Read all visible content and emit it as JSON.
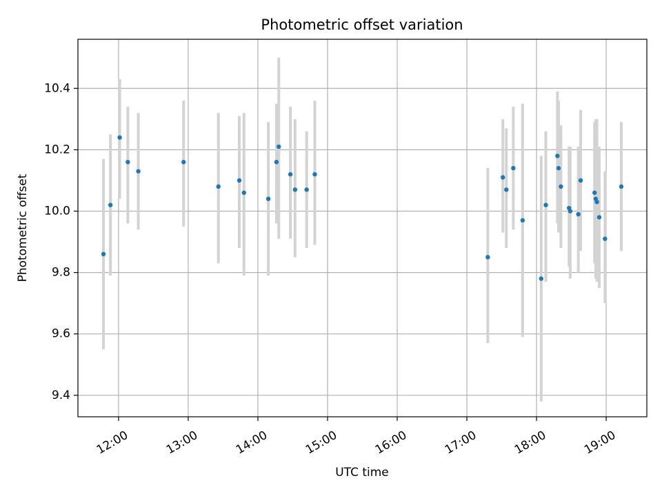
{
  "chart_data": {
    "type": "scatter",
    "title": "Photometric offset variation",
    "xlabel": "UTC time",
    "ylabel": "Photometric offset",
    "x_unit": "UTC time (HH:MM)",
    "xlim": [
      "11:25",
      "19:35"
    ],
    "ylim": [
      9.33,
      10.56
    ],
    "x_ticks": [
      "12:00",
      "13:00",
      "14:00",
      "15:00",
      "16:00",
      "17:00",
      "18:00",
      "19:00"
    ],
    "y_ticks": [
      "9.4",
      "9.6",
      "9.8",
      "10.0",
      "10.2",
      "10.4"
    ],
    "grid": true,
    "marker_color": "#1f77b4",
    "errorbar_color": "#d3d3d3",
    "series": [
      {
        "points": [
          {
            "t": "11:47",
            "y": 9.86,
            "lo": 9.55,
            "hi": 10.17
          },
          {
            "t": "11:53",
            "y": 10.02,
            "lo": 9.79,
            "hi": 10.25
          },
          {
            "t": "12:01",
            "y": 10.24,
            "lo": 10.04,
            "hi": 10.43
          },
          {
            "t": "12:08",
            "y": 10.16,
            "lo": 9.96,
            "hi": 10.34
          },
          {
            "t": "12:17",
            "y": 10.13,
            "lo": 9.94,
            "hi": 10.32
          },
          {
            "t": "12:56",
            "y": 10.16,
            "lo": 9.95,
            "hi": 10.36
          },
          {
            "t": "13:26",
            "y": 10.08,
            "lo": 9.83,
            "hi": 10.32
          },
          {
            "t": "13:44",
            "y": 10.1,
            "lo": 9.88,
            "hi": 10.31
          },
          {
            "t": "13:48",
            "y": 10.06,
            "lo": 9.79,
            "hi": 10.32
          },
          {
            "t": "14:09",
            "y": 10.04,
            "lo": 9.79,
            "hi": 10.29
          },
          {
            "t": "14:16",
            "y": 10.16,
            "lo": 9.96,
            "hi": 10.35
          },
          {
            "t": "14:18",
            "y": 10.21,
            "lo": 9.91,
            "hi": 10.5
          },
          {
            "t": "14:28",
            "y": 10.12,
            "lo": 9.91,
            "hi": 10.34
          },
          {
            "t": "14:32",
            "y": 10.07,
            "lo": 9.85,
            "hi": 10.3
          },
          {
            "t": "14:42",
            "y": 10.07,
            "lo": 9.88,
            "hi": 10.26
          },
          {
            "t": "14:49",
            "y": 10.12,
            "lo": 9.89,
            "hi": 10.36
          },
          {
            "t": "17:18",
            "y": 9.85,
            "lo": 9.57,
            "hi": 10.14
          },
          {
            "t": "17:31",
            "y": 10.11,
            "lo": 9.93,
            "hi": 10.3
          },
          {
            "t": "17:34",
            "y": 10.07,
            "lo": 9.88,
            "hi": 10.27
          },
          {
            "t": "17:40",
            "y": 10.14,
            "lo": 9.94,
            "hi": 10.34
          },
          {
            "t": "17:48",
            "y": 9.97,
            "lo": 9.59,
            "hi": 10.35
          },
          {
            "t": "18:04",
            "y": 9.78,
            "lo": 9.38,
            "hi": 10.18
          },
          {
            "t": "18:08",
            "y": 10.02,
            "lo": 9.77,
            "hi": 10.26
          },
          {
            "t": "18:18",
            "y": 10.18,
            "lo": 9.96,
            "hi": 10.39
          },
          {
            "t": "18:19",
            "y": 10.14,
            "lo": 9.93,
            "hi": 10.36
          },
          {
            "t": "18:21",
            "y": 10.08,
            "lo": 9.88,
            "hi": 10.28
          },
          {
            "t": "18:28",
            "y": 10.01,
            "lo": 9.82,
            "hi": 10.21
          },
          {
            "t": "18:29",
            "y": 10.0,
            "lo": 9.78,
            "hi": 10.21
          },
          {
            "t": "18:36",
            "y": 9.99,
            "lo": 9.8,
            "hi": 10.21
          },
          {
            "t": "18:38",
            "y": 10.1,
            "lo": 9.87,
            "hi": 10.33
          },
          {
            "t": "18:50",
            "y": 10.06,
            "lo": 9.83,
            "hi": 10.29
          },
          {
            "t": "18:51",
            "y": 10.04,
            "lo": 9.78,
            "hi": 10.3
          },
          {
            "t": "18:52",
            "y": 10.03,
            "lo": 9.77,
            "hi": 10.3
          },
          {
            "t": "18:54",
            "y": 9.98,
            "lo": 9.75,
            "hi": 10.21
          },
          {
            "t": "18:59",
            "y": 9.91,
            "lo": 9.7,
            "hi": 10.13
          },
          {
            "t": "19:13",
            "y": 10.08,
            "lo": 9.87,
            "hi": 10.29
          }
        ]
      }
    ]
  }
}
